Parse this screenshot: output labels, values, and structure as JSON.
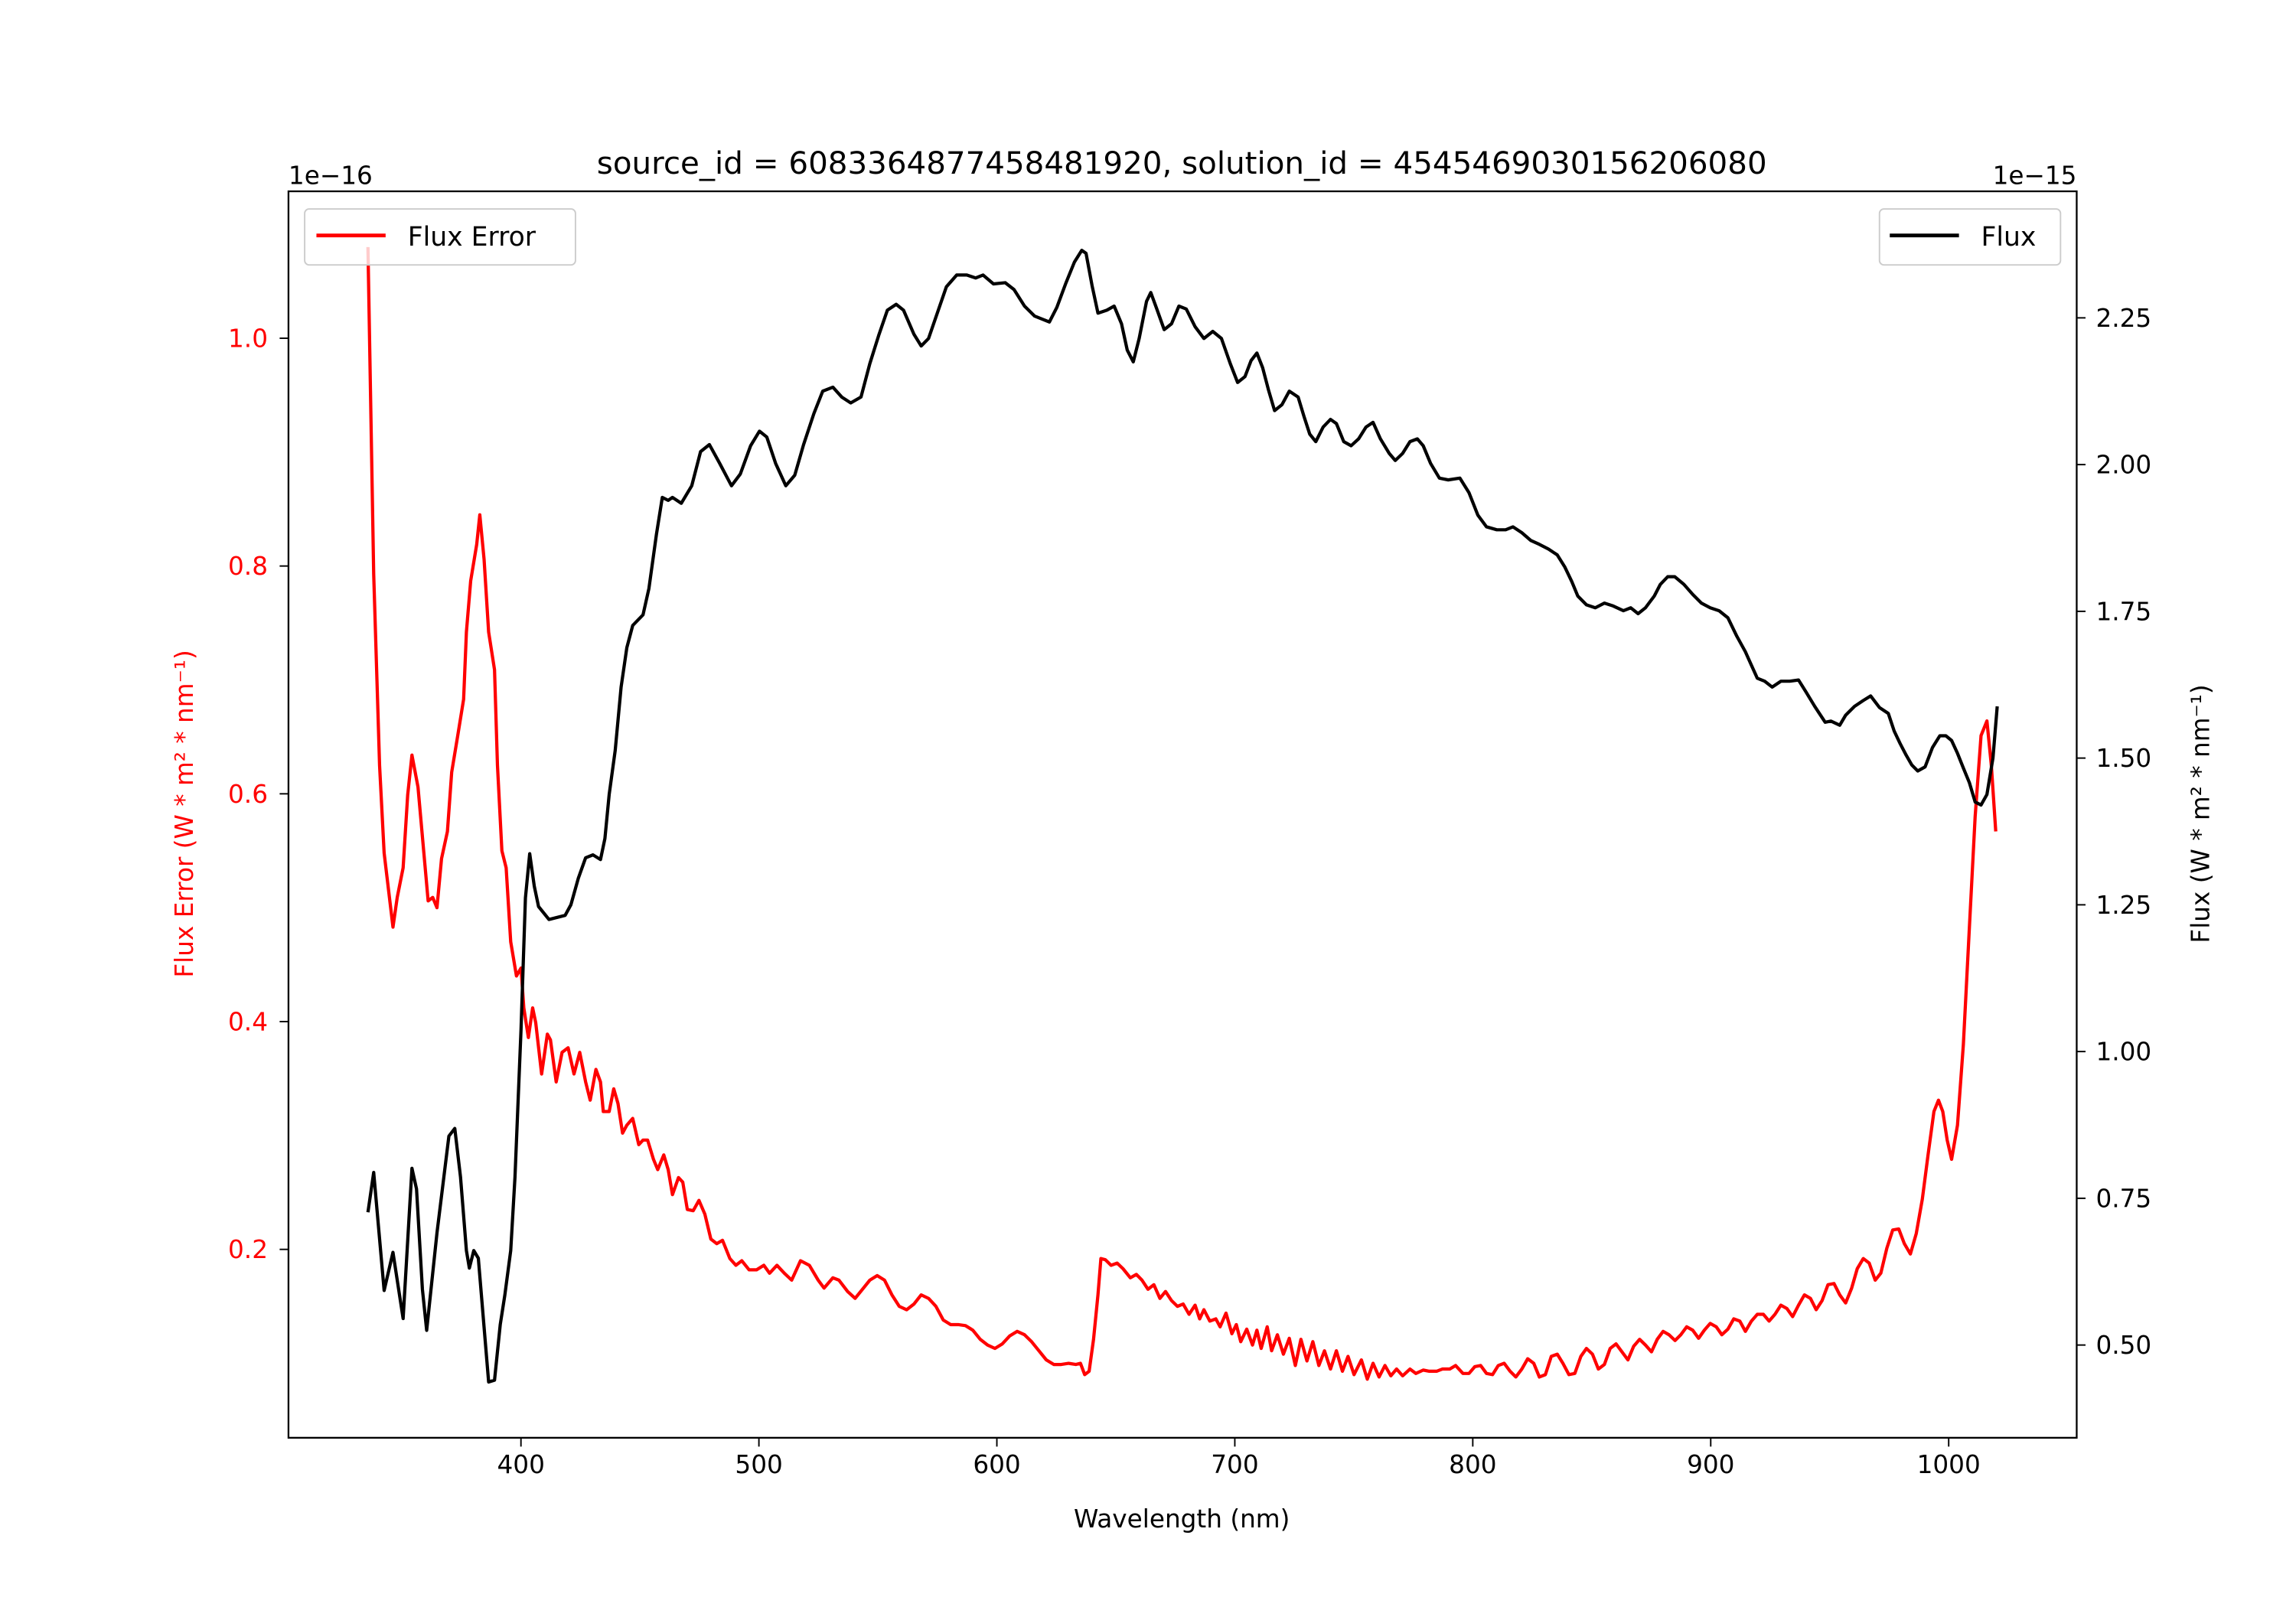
{
  "chart_data": {
    "type": "line",
    "title": "source_id = 6083364877458481920, solution_id = 4545469030156206080",
    "xlabel": "Wavelength (nm)",
    "ylabel_left": "Flux Error (W * m² * nm⁻¹)",
    "ylabel_right": "Flux (W * m² * nm⁻¹)",
    "offset_left": "1e−16",
    "offset_right": "1e−15",
    "xlim": [
      302.3,
      1053.8
    ],
    "ylim_left": [
      0.0346,
      1.129
    ],
    "ylim_right": [
      0.342,
      2.4656
    ],
    "xticks": [
      400,
      500,
      600,
      700,
      800,
      900,
      1000
    ],
    "xtick_labels": [
      "400",
      "500",
      "600",
      "700",
      "800",
      "900",
      "1000"
    ],
    "yticks_left": [
      0.2,
      0.4,
      0.6,
      0.8,
      1.0
    ],
    "ytick_labels_left": [
      "0.2",
      "0.4",
      "0.6",
      "0.8",
      "1.0"
    ],
    "yticks_right": [
      0.5,
      0.75,
      1.0,
      1.25,
      1.5,
      1.75,
      2.0,
      2.25
    ],
    "ytick_labels_right": [
      "0.50",
      "0.75",
      "1.00",
      "1.25",
      "1.50",
      "1.75",
      "2.00",
      "2.25"
    ],
    "grid": false,
    "colors": {
      "flux_error": "#ff0000",
      "flux": "#000000",
      "left_axis_text": "#ff0000"
    },
    "legend_left": {
      "label": "Flux Error",
      "placement": "upper-left"
    },
    "legend_right": {
      "label": "Flux",
      "placement": "upper-right"
    },
    "series": [
      {
        "name": "Flux Error",
        "axis": "left",
        "x": [
          335.7,
          338.1,
          340.6,
          342.5,
          346.2,
          348.0,
          350.5,
          352.4,
          354.2,
          356.7,
          359.2,
          361.0,
          362.9,
          364.7,
          366.6,
          369.1,
          370.9,
          373.4,
          375.9,
          377.1,
          378.9,
          381.4,
          382.7,
          384.5,
          386.4,
          388.9,
          390.1,
          392.0,
          393.8,
          395.7,
          398.1,
          400.0,
          401.2,
          403.1,
          404.9,
          406.2,
          408.7,
          411.1,
          412.4,
          414.8,
          417.3,
          419.8,
          422.3,
          424.7,
          427.2,
          429.1,
          431.5,
          433.4,
          434.6,
          437.1,
          439.0,
          440.8,
          442.7,
          444.5,
          447.0,
          449.5,
          451.3,
          453.2,
          455.7,
          457.5,
          460.0,
          461.9,
          463.7,
          466.2,
          468.0,
          469.9,
          472.4,
          474.8,
          477.3,
          479.8,
          482.3,
          484.7,
          487.8,
          490.3,
          492.8,
          495.9,
          499.0,
          502.1,
          504.5,
          507.6,
          510.7,
          513.8,
          517.5,
          521.2,
          524.9,
          527.4,
          531.1,
          533.6,
          537.3,
          540.4,
          543.5,
          546.6,
          549.7,
          552.8,
          555.9,
          559.0,
          562.1,
          565.2,
          568.2,
          571.3,
          574.4,
          577.5,
          580.6,
          583.7,
          586.8,
          589.9,
          593.0,
          596.1,
          599.2,
          602.3,
          605.4,
          608.5,
          611.6,
          614.6,
          617.7,
          620.8,
          623.9,
          627.0,
          630.1,
          633.2,
          635.1,
          636.9,
          638.8,
          640.6,
          642.5,
          643.7,
          645.6,
          648.0,
          650.5,
          653.0,
          656.1,
          658.6,
          661.0,
          663.5,
          666.0,
          668.5,
          670.9,
          673.4,
          675.9,
          678.3,
          680.8,
          683.3,
          685.2,
          687.0,
          689.5,
          692.0,
          693.8,
          696.3,
          698.8,
          700.6,
          702.5,
          705.0,
          707.4,
          709.3,
          711.1,
          713.6,
          715.5,
          717.9,
          720.4,
          722.9,
          725.4,
          727.8,
          730.3,
          732.8,
          735.3,
          737.7,
          740.2,
          742.7,
          745.2,
          747.6,
          750.1,
          753.2,
          755.7,
          758.1,
          760.6,
          763.1,
          765.6,
          768.0,
          770.5,
          773.6,
          776.1,
          779.2,
          781.7,
          784.8,
          787.2,
          790.3,
          792.8,
          795.9,
          798.4,
          800.8,
          803.3,
          805.8,
          808.3,
          810.7,
          813.2,
          815.7,
          818.1,
          820.6,
          823.1,
          825.6,
          828.0,
          830.5,
          833.0,
          835.5,
          837.9,
          840.4,
          842.9,
          845.4,
          847.8,
          850.3,
          852.8,
          855.3,
          857.7,
          860.2,
          862.7,
          865.2,
          867.6,
          870.1,
          872.6,
          875.1,
          877.5,
          880.0,
          882.5,
          885.0,
          887.4,
          889.9,
          892.4,
          894.9,
          897.3,
          899.8,
          902.3,
          904.7,
          907.2,
          909.7,
          912.2,
          914.6,
          917.1,
          919.6,
          922.1,
          924.5,
          927.0,
          929.5,
          932.0,
          934.4,
          936.9,
          939.4,
          941.9,
          944.3,
          946.8,
          949.3,
          951.8,
          954.2,
          956.7,
          959.2,
          961.6,
          964.1,
          966.6,
          969.1,
          971.5,
          974.0,
          976.5,
          979.0,
          981.4,
          983.9,
          986.4,
          988.9,
          991.3,
          993.8,
          995.7,
          997.5,
          999.4,
          1001.2,
          1003.7,
          1006.2,
          1008.7,
          1011.1,
          1013.6,
          1016.1,
          1017.9,
          1019.8
        ],
        "y": [
          1.08,
          0.793,
          0.625,
          0.548,
          0.483,
          0.509,
          0.535,
          0.599,
          0.634,
          0.606,
          0.548,
          0.506,
          0.509,
          0.5,
          0.543,
          0.567,
          0.619,
          0.651,
          0.683,
          0.742,
          0.787,
          0.819,
          0.845,
          0.806,
          0.742,
          0.709,
          0.625,
          0.55,
          0.535,
          0.47,
          0.44,
          0.447,
          0.412,
          0.386,
          0.412,
          0.399,
          0.354,
          0.389,
          0.384,
          0.347,
          0.373,
          0.377,
          0.354,
          0.373,
          0.347,
          0.331,
          0.358,
          0.347,
          0.321,
          0.321,
          0.341,
          0.328,
          0.302,
          0.309,
          0.315,
          0.292,
          0.296,
          0.296,
          0.279,
          0.27,
          0.283,
          0.27,
          0.248,
          0.263,
          0.259,
          0.235,
          0.234,
          0.243,
          0.231,
          0.209,
          0.205,
          0.208,
          0.192,
          0.186,
          0.19,
          0.182,
          0.182,
          0.186,
          0.179,
          0.186,
          0.179,
          0.173,
          0.19,
          0.186,
          0.173,
          0.166,
          0.175,
          0.173,
          0.163,
          0.157,
          0.165,
          0.173,
          0.177,
          0.173,
          0.16,
          0.15,
          0.147,
          0.152,
          0.16,
          0.157,
          0.15,
          0.138,
          0.134,
          0.134,
          0.133,
          0.129,
          0.121,
          0.116,
          0.113,
          0.117,
          0.124,
          0.128,
          0.125,
          0.119,
          0.111,
          0.103,
          0.099,
          0.099,
          0.1,
          0.099,
          0.1,
          0.09,
          0.093,
          0.121,
          0.16,
          0.192,
          0.191,
          0.186,
          0.188,
          0.183,
          0.175,
          0.178,
          0.173,
          0.165,
          0.169,
          0.157,
          0.163,
          0.155,
          0.15,
          0.152,
          0.143,
          0.151,
          0.139,
          0.147,
          0.137,
          0.139,
          0.132,
          0.144,
          0.126,
          0.134,
          0.119,
          0.13,
          0.116,
          0.129,
          0.113,
          0.132,
          0.111,
          0.125,
          0.108,
          0.122,
          0.098,
          0.121,
          0.102,
          0.119,
          0.098,
          0.111,
          0.095,
          0.111,
          0.093,
          0.106,
          0.09,
          0.103,
          0.086,
          0.1,
          0.088,
          0.098,
          0.089,
          0.095,
          0.089,
          0.095,
          0.091,
          0.094,
          0.093,
          0.093,
          0.095,
          0.095,
          0.098,
          0.091,
          0.091,
          0.097,
          0.098,
          0.091,
          0.09,
          0.098,
          0.1,
          0.093,
          0.088,
          0.095,
          0.104,
          0.1,
          0.088,
          0.09,
          0.106,
          0.108,
          0.1,
          0.09,
          0.091,
          0.106,
          0.113,
          0.108,
          0.095,
          0.099,
          0.113,
          0.117,
          0.11,
          0.103,
          0.115,
          0.121,
          0.116,
          0.11,
          0.121,
          0.128,
          0.125,
          0.12,
          0.125,
          0.132,
          0.129,
          0.122,
          0.129,
          0.135,
          0.132,
          0.125,
          0.13,
          0.139,
          0.137,
          0.128,
          0.137,
          0.143,
          0.143,
          0.137,
          0.143,
          0.151,
          0.148,
          0.141,
          0.151,
          0.16,
          0.157,
          0.147,
          0.155,
          0.169,
          0.17,
          0.16,
          0.153,
          0.166,
          0.183,
          0.192,
          0.188,
          0.173,
          0.179,
          0.201,
          0.217,
          0.218,
          0.205,
          0.196,
          0.214,
          0.244,
          0.283,
          0.321,
          0.331,
          0.321,
          0.296,
          0.279,
          0.309,
          0.38,
          0.483,
          0.58,
          0.651,
          0.664,
          0.625,
          0.567
        ]
      },
      {
        "name": "Flux",
        "axis": "right",
        "x": [
          335.7,
          338.1,
          342.5,
          346.2,
          350.5,
          354.2,
          356.1,
          358.6,
          360.4,
          364.7,
          369.7,
          372.2,
          374.6,
          377.1,
          378.3,
          380.2,
          382.1,
          386.4,
          388.9,
          391.3,
          393.2,
          395.7,
          397.5,
          400.0,
          401.9,
          403.7,
          405.6,
          407.4,
          411.8,
          418.6,
          421.0,
          424.1,
          427.2,
          430.3,
          433.4,
          435.3,
          437.1,
          439.6,
          442.1,
          444.5,
          447.0,
          451.3,
          453.8,
          456.9,
          459.4,
          461.9,
          463.7,
          467.4,
          471.8,
          475.5,
          479.2,
          483.5,
          488.5,
          492.2,
          496.5,
          500.2,
          503.3,
          507.0,
          511.3,
          515.1,
          518.8,
          523.1,
          526.8,
          531.1,
          534.8,
          538.6,
          542.9,
          546.6,
          550.3,
          554.0,
          557.7,
          560.8,
          565.2,
          568.2,
          571.3,
          575.1,
          578.8,
          583.1,
          587.4,
          591.1,
          594.2,
          598.6,
          603.5,
          607.2,
          611.6,
          615.9,
          619.0,
          622.1,
          625.2,
          628.9,
          632.6,
          635.7,
          637.5,
          640.0,
          642.5,
          646.2,
          649.3,
          652.4,
          654.8,
          657.3,
          659.8,
          662.9,
          664.7,
          667.2,
          670.3,
          673.4,
          676.5,
          679.6,
          683.3,
          687.0,
          690.7,
          694.4,
          698.1,
          701.2,
          704.3,
          706.8,
          709.3,
          711.7,
          714.2,
          716.7,
          719.8,
          722.9,
          726.6,
          729.1,
          731.5,
          734.0,
          737.1,
          740.2,
          742.7,
          745.8,
          748.9,
          752.0,
          755.1,
          758.1,
          761.2,
          764.9,
          767.4,
          770.5,
          773.6,
          776.7,
          779.2,
          782.3,
          786.0,
          789.7,
          794.6,
          798.4,
          802.1,
          805.8,
          810.1,
          813.8,
          816.9,
          820.6,
          824.3,
          828.0,
          831.8,
          835.5,
          838.6,
          841.6,
          844.1,
          847.8,
          851.5,
          855.3,
          859.0,
          863.3,
          866.4,
          869.5,
          872.6,
          876.3,
          878.8,
          881.9,
          884.9,
          888.7,
          892.4,
          896.1,
          899.8,
          903.5,
          907.2,
          910.9,
          914.6,
          917.1,
          919.6,
          922.7,
          925.8,
          929.5,
          933.2,
          936.9,
          940.0,
          943.7,
          948.1,
          950.5,
          954.2,
          956.7,
          960.4,
          964.1,
          967.2,
          970.9,
          974.6,
          977.1,
          979.6,
          982.1,
          984.5,
          987.0,
          990.1,
          993.2,
          996.3,
          998.8,
          1001.2,
          1003.7,
          1006.2,
          1008.7,
          1011.1,
          1013.6,
          1016.1,
          1018.6,
          1020.4
        ],
        "y": [
          0.726,
          0.794,
          0.593,
          0.658,
          0.545,
          0.801,
          0.766,
          0.595,
          0.525,
          0.691,
          0.856,
          0.869,
          0.786,
          0.661,
          0.631,
          0.661,
          0.648,
          0.437,
          0.44,
          0.535,
          0.585,
          0.661,
          0.786,
          1.037,
          1.262,
          1.337,
          1.282,
          1.247,
          1.225,
          1.232,
          1.25,
          1.295,
          1.33,
          1.335,
          1.327,
          1.363,
          1.438,
          1.513,
          1.621,
          1.688,
          1.726,
          1.744,
          1.789,
          1.881,
          1.944,
          1.939,
          1.944,
          1.934,
          1.964,
          2.022,
          2.034,
          2.002,
          1.964,
          1.984,
          2.032,
          2.057,
          2.047,
          2.002,
          1.964,
          1.982,
          2.034,
          2.087,
          2.125,
          2.132,
          2.115,
          2.105,
          2.115,
          2.172,
          2.22,
          2.263,
          2.273,
          2.263,
          2.222,
          2.202,
          2.215,
          2.26,
          2.303,
          2.323,
          2.323,
          2.318,
          2.323,
          2.308,
          2.31,
          2.298,
          2.27,
          2.253,
          2.248,
          2.243,
          2.268,
          2.308,
          2.345,
          2.365,
          2.36,
          2.305,
          2.258,
          2.263,
          2.27,
          2.24,
          2.195,
          2.175,
          2.215,
          2.278,
          2.293,
          2.265,
          2.23,
          2.24,
          2.27,
          2.265,
          2.235,
          2.215,
          2.227,
          2.215,
          2.172,
          2.14,
          2.15,
          2.177,
          2.19,
          2.165,
          2.127,
          2.092,
          2.102,
          2.125,
          2.115,
          2.082,
          2.052,
          2.039,
          2.064,
          2.077,
          2.07,
          2.039,
          2.032,
          2.044,
          2.064,
          2.072,
          2.044,
          2.019,
          2.007,
          2.019,
          2.039,
          2.044,
          2.032,
          2.002,
          1.977,
          1.974,
          1.977,
          1.952,
          1.914,
          1.894,
          1.889,
          1.889,
          1.894,
          1.884,
          1.871,
          1.864,
          1.856,
          1.846,
          1.826,
          1.801,
          1.776,
          1.761,
          1.756,
          1.764,
          1.759,
          1.751,
          1.756,
          1.746,
          1.756,
          1.776,
          1.796,
          1.809,
          1.809,
          1.796,
          1.779,
          1.764,
          1.756,
          1.751,
          1.739,
          1.708,
          1.681,
          1.658,
          1.636,
          1.631,
          1.621,
          1.631,
          1.631,
          1.633,
          1.613,
          1.588,
          1.561,
          1.563,
          1.556,
          1.573,
          1.588,
          1.598,
          1.606,
          1.586,
          1.576,
          1.546,
          1.525,
          1.505,
          1.488,
          1.478,
          1.485,
          1.518,
          1.538,
          1.538,
          1.53,
          1.508,
          1.483,
          1.458,
          1.425,
          1.42,
          1.438,
          1.5,
          1.588
        ]
      }
    ]
  }
}
